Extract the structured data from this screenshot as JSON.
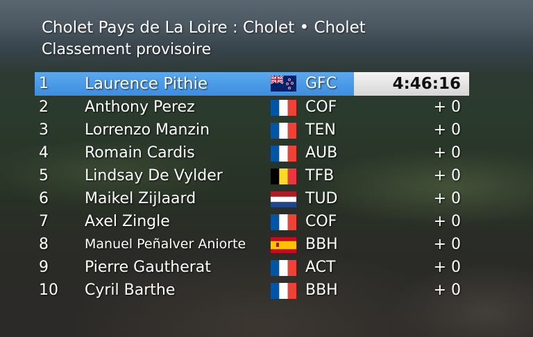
{
  "header": {
    "title": "Cholet Pays de La Loire : Cholet • Cholet",
    "subtitle": "Classement provisoire"
  },
  "standings": [
    {
      "rank": "1",
      "name": "Laurence Pithie",
      "flag": "nz-flag-icon",
      "team": "GFC",
      "time": "4:46:16"
    },
    {
      "rank": "2",
      "name": "Anthony Perez",
      "flag": "fr-flag-icon",
      "team": "COF",
      "time": "+ 0"
    },
    {
      "rank": "3",
      "name": "Lorrenzo Manzin",
      "flag": "fr-flag-icon",
      "team": "TEN",
      "time": "+ 0"
    },
    {
      "rank": "4",
      "name": "Romain Cardis",
      "flag": "fr-flag-icon",
      "team": "AUB",
      "time": "+ 0"
    },
    {
      "rank": "5",
      "name": "Lindsay De Vylder",
      "flag": "be-flag-icon",
      "team": "TFB",
      "time": "+ 0"
    },
    {
      "rank": "6",
      "name": "Maikel Zijlaard",
      "flag": "nl-flag-icon",
      "team": "TUD",
      "time": "+ 0"
    },
    {
      "rank": "7",
      "name": "Axel Zingle",
      "flag": "fr-flag-icon",
      "team": "COF",
      "time": "+ 0"
    },
    {
      "rank": "8",
      "name": "Manuel Peñalver Aniorte",
      "flag": "es-flag-icon",
      "team": "BBH",
      "time": "+ 0"
    },
    {
      "rank": "9",
      "name": "Pierre Gautherat",
      "flag": "fr-flag-icon",
      "team": "ACT",
      "time": "+ 0"
    },
    {
      "rank": "10",
      "name": "Cyril Barthe",
      "flag": "fr-flag-icon",
      "team": "BBH",
      "time": "+ 0"
    }
  ],
  "colors": {
    "leader_bar": "#3e8de0",
    "time_box": "#e6e6e6"
  }
}
